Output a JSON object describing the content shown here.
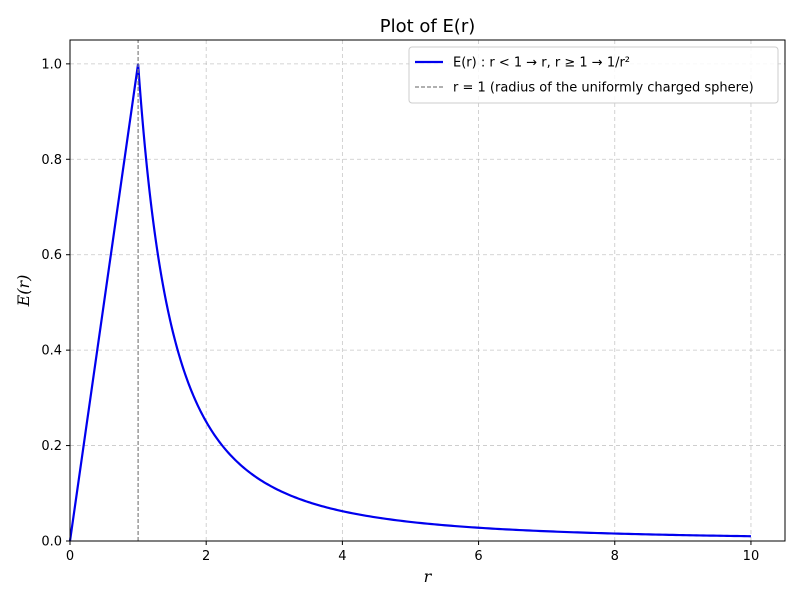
{
  "chart_data": {
    "type": "line",
    "title": "Plot of E(r)",
    "xlabel": "r",
    "ylabel": "E(r)",
    "xlim": [
      0,
      10.5
    ],
    "ylim": [
      0,
      1.05
    ],
    "xticks": [
      0,
      2,
      4,
      6,
      8,
      10
    ],
    "xtick_labels": [
      "0",
      "2",
      "4",
      "6",
      "8",
      "10"
    ],
    "yticks": [
      0.0,
      0.2,
      0.4,
      0.6,
      0.8,
      1.0
    ],
    "ytick_labels": [
      "0.0",
      "0.2",
      "0.4",
      "0.6",
      "0.8",
      "1.0"
    ],
    "grid": true,
    "legend_position": "top-right",
    "series": [
      {
        "name": "E(r) : r < 1 → r, r ≥ 1 → 1/r²",
        "color": "#0000ee",
        "style": "solid",
        "x": [
          0,
          0.5,
          1.0,
          1.1,
          1.25,
          1.5,
          1.75,
          2.0,
          2.5,
          3.0,
          3.5,
          4.0,
          5.0,
          6.0,
          7.0,
          8.0,
          9.0,
          10.0
        ],
        "y": [
          0,
          0.5,
          1.0,
          0.826,
          0.64,
          0.444,
          0.327,
          0.25,
          0.16,
          0.111,
          0.082,
          0.0625,
          0.04,
          0.028,
          0.02,
          0.016,
          0.012,
          0.01
        ]
      },
      {
        "name": "r = 1 (radius of the uniformly charged sphere)",
        "color": "#808080",
        "style": "dashed",
        "x": [
          1,
          1
        ],
        "y": [
          0,
          1.05
        ]
      }
    ]
  }
}
